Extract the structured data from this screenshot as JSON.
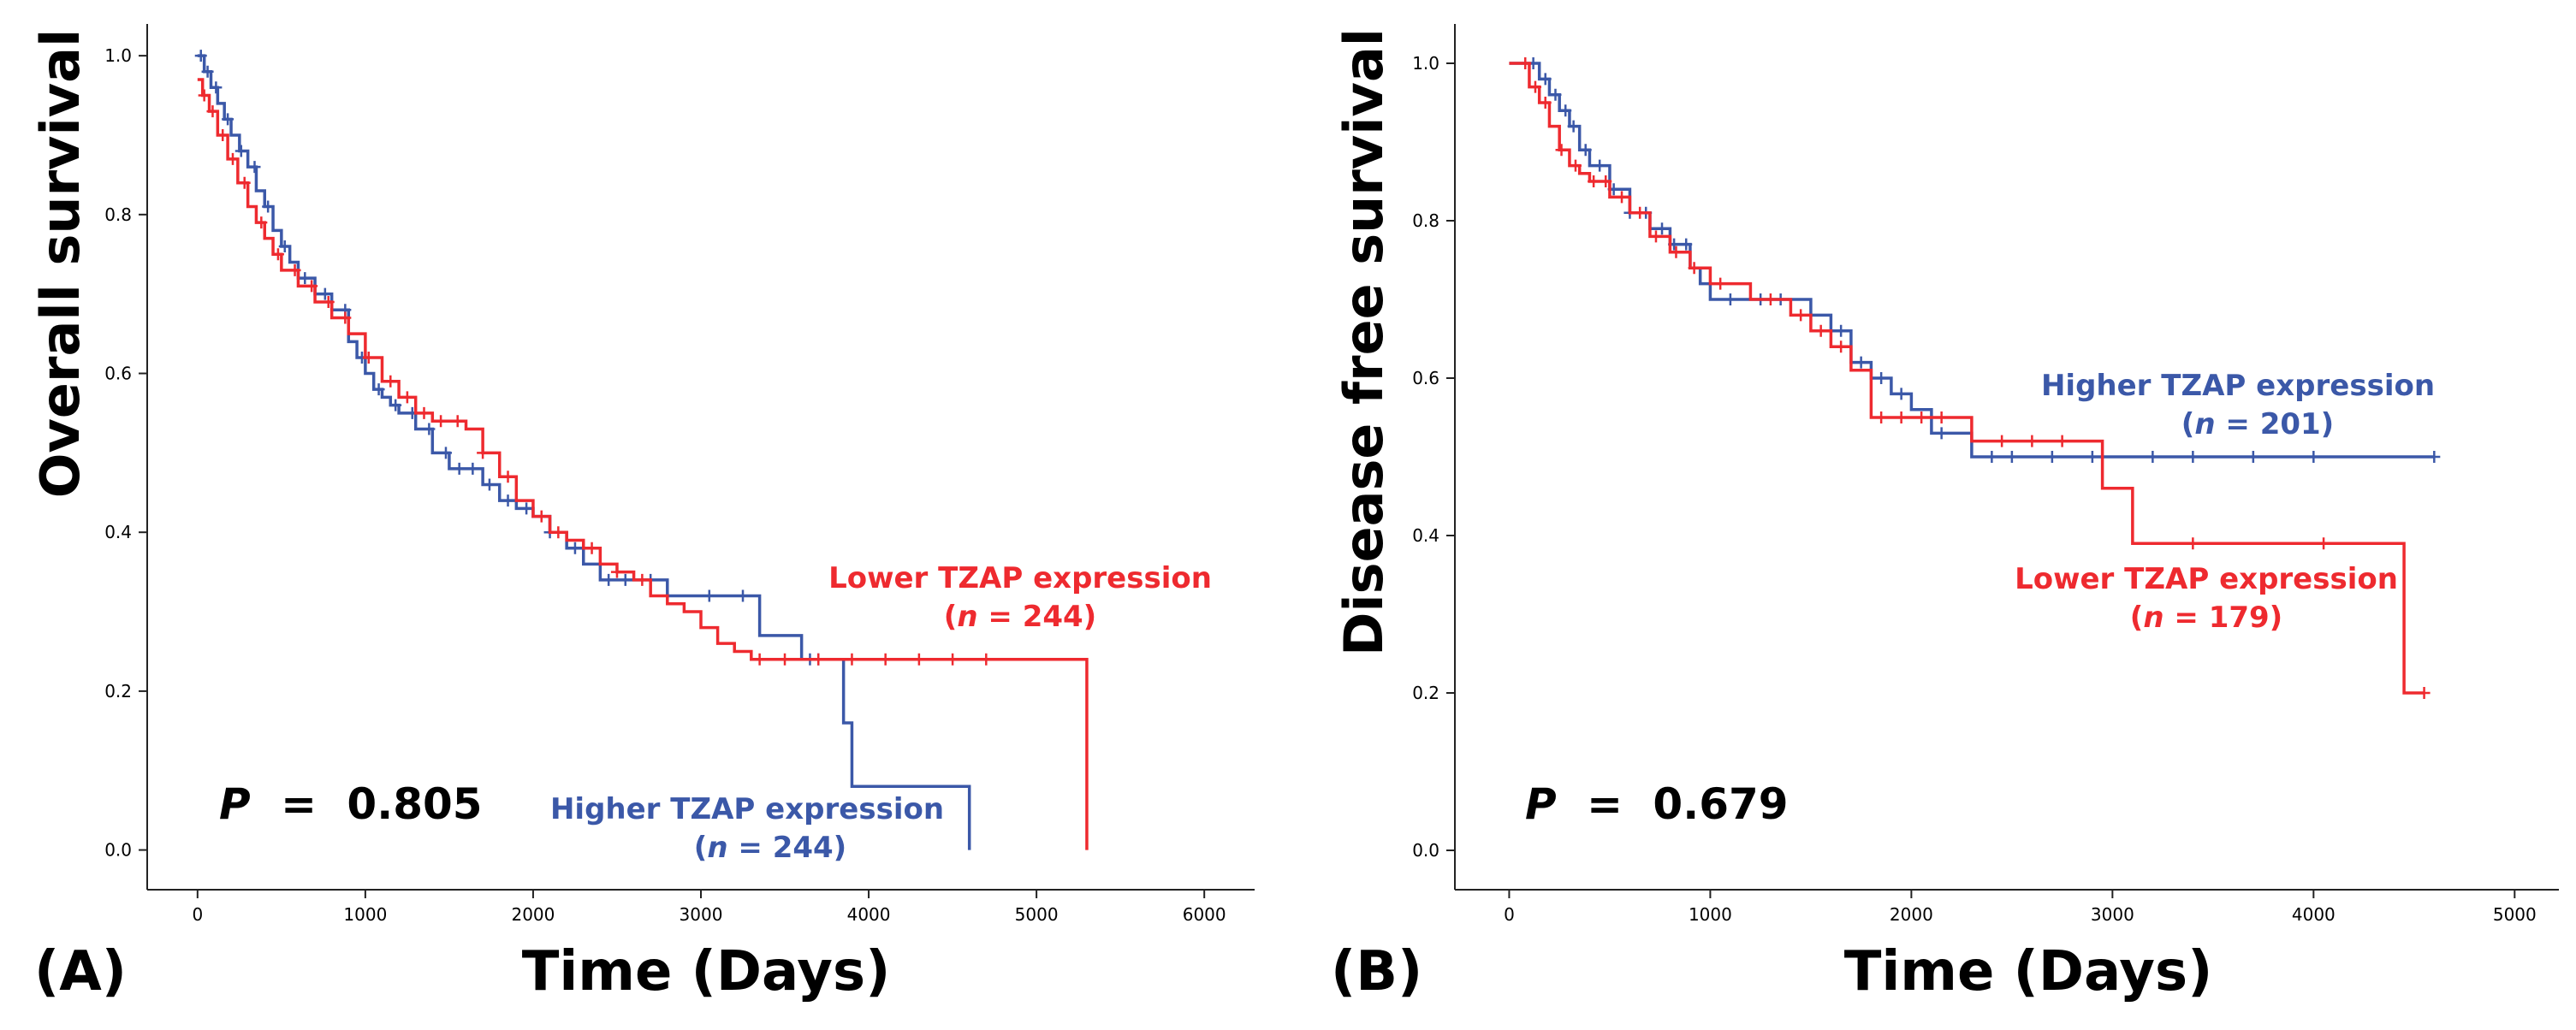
{
  "panels": [
    {
      "panel_label": "(A)",
      "p_value": {
        "label": "P",
        "eq": "=",
        "value": "0.805"
      },
      "legend": {
        "lower": {
          "name": "Lower TZAP expression",
          "n_label": "n",
          "n_text": "= 244)",
          "open_paren": "("
        },
        "higher": {
          "name": "Higher TZAP expression",
          "n_label": "n",
          "n_text": "= 244)",
          "open_paren": "("
        }
      }
    },
    {
      "panel_label": "(B)",
      "p_value": {
        "label": "P",
        "eq": "=",
        "value": "0.679"
      },
      "legend": {
        "lower": {
          "name": "Lower TZAP expression",
          "n_label": "n",
          "n_text": "= 179)",
          "open_paren": "("
        },
        "higher": {
          "name": "Higher TZAP expression",
          "n_label": "n",
          "n_text": "= 201)",
          "open_paren": "("
        }
      }
    }
  ],
  "colors": {
    "lower": "#ee2a2f",
    "higher": "#3b58a8",
    "axis": "#222222"
  },
  "chart_data": [
    {
      "type": "line",
      "step": true,
      "xlabel": "Time (Days)",
      "ylabel": "Overall survival",
      "xlim": [
        -300,
        6300
      ],
      "ylim": [
        -0.05,
        1.04
      ],
      "xticks": [
        0,
        1000,
        2000,
        3000,
        4000,
        5000,
        6000
      ],
      "yticks": [
        0.0,
        0.2,
        0.4,
        0.6,
        0.8,
        1.0
      ],
      "ytick_labels": [
        "0.0",
        "0.2",
        "0.4",
        "0.6",
        "0.8",
        "1.0"
      ],
      "series": [
        {
          "name": "Higher TZAP expression",
          "x": [
            0,
            40,
            80,
            120,
            160,
            200,
            250,
            300,
            350,
            400,
            450,
            500,
            550,
            600,
            700,
            800,
            900,
            950,
            1000,
            1050,
            1100,
            1150,
            1200,
            1300,
            1400,
            1500,
            1600,
            1700,
            1800,
            1900,
            2000,
            2100,
            2200,
            2300,
            2400,
            2600,
            2800,
            3000,
            3200,
            3350,
            3600,
            3800,
            3850,
            3900,
            4000,
            4600
          ],
          "y": [
            1.0,
            0.98,
            0.96,
            0.94,
            0.92,
            0.9,
            0.88,
            0.86,
            0.83,
            0.81,
            0.78,
            0.76,
            0.74,
            0.72,
            0.7,
            0.68,
            0.64,
            0.62,
            0.6,
            0.58,
            0.57,
            0.56,
            0.55,
            0.53,
            0.5,
            0.48,
            0.48,
            0.46,
            0.44,
            0.43,
            0.42,
            0.4,
            0.38,
            0.36,
            0.34,
            0.34,
            0.32,
            0.32,
            0.32,
            0.27,
            0.24,
            0.24,
            0.16,
            0.08,
            0.08,
            0.0
          ],
          "censored_x": [
            20,
            60,
            110,
            180,
            260,
            340,
            420,
            520,
            640,
            760,
            880,
            980,
            1080,
            1180,
            1280,
            1380,
            1480,
            1560,
            1640,
            1740,
            1850,
            1960,
            2100,
            2250,
            2450,
            2550,
            2700,
            3050,
            3250,
            3650,
            3700
          ]
        },
        {
          "name": "Lower TZAP expression",
          "x": [
            0,
            30,
            70,
            120,
            180,
            240,
            300,
            350,
            400,
            450,
            500,
            600,
            700,
            800,
            900,
            1000,
            1100,
            1200,
            1300,
            1400,
            1500,
            1600,
            1700,
            1800,
            1900,
            2000,
            2100,
            2200,
            2300,
            2400,
            2500,
            2600,
            2700,
            2800,
            2900,
            3000,
            3100,
            3200,
            3300,
            5300
          ],
          "y": [
            0.97,
            0.95,
            0.93,
            0.9,
            0.87,
            0.84,
            0.81,
            0.79,
            0.77,
            0.75,
            0.73,
            0.71,
            0.69,
            0.67,
            0.65,
            0.62,
            0.59,
            0.57,
            0.55,
            0.54,
            0.54,
            0.53,
            0.5,
            0.47,
            0.44,
            0.42,
            0.4,
            0.39,
            0.38,
            0.36,
            0.35,
            0.34,
            0.32,
            0.31,
            0.3,
            0.28,
            0.26,
            0.25,
            0.24,
            0.0
          ],
          "censored_x": [
            40,
            90,
            150,
            210,
            280,
            380,
            480,
            580,
            680,
            780,
            880,
            1020,
            1150,
            1250,
            1350,
            1450,
            1550,
            1700,
            1850,
            2050,
            2150,
            2350,
            2500,
            2650,
            3350,
            3500,
            3700,
            3900,
            4100,
            4300,
            4500,
            4700
          ]
        }
      ]
    },
    {
      "type": "line",
      "step": true,
      "xlabel": "Time (Days)",
      "ylabel": "Disease free survival",
      "xlim": [
        -270,
        5220
      ],
      "ylim": [
        -0.05,
        1.05
      ],
      "xticks": [
        0,
        1000,
        2000,
        3000,
        4000,
        5000
      ],
      "yticks": [
        0.0,
        0.2,
        0.4,
        0.6,
        0.8,
        1.0
      ],
      "ytick_labels": [
        "0.0",
        "0.2",
        "0.4",
        "0.6",
        "0.8",
        "1.0"
      ],
      "series": [
        {
          "name": "Higher TZAP expression",
          "x": [
            0,
            150,
            200,
            250,
            300,
            350,
            400,
            500,
            600,
            700,
            800,
            900,
            950,
            1000,
            1200,
            1400,
            1500,
            1600,
            1700,
            1800,
            1900,
            2000,
            2100,
            2300,
            4600
          ],
          "y": [
            1.0,
            0.98,
            0.96,
            0.94,
            0.92,
            0.89,
            0.87,
            0.84,
            0.81,
            0.79,
            0.77,
            0.74,
            0.72,
            0.7,
            0.7,
            0.7,
            0.68,
            0.66,
            0.62,
            0.6,
            0.58,
            0.56,
            0.53,
            0.5,
            0.5
          ],
          "censored_x": [
            120,
            180,
            230,
            280,
            320,
            380,
            450,
            520,
            600,
            680,
            760,
            820,
            880,
            1100,
            1250,
            1350,
            1650,
            1750,
            1850,
            1950,
            2150,
            2400,
            2500,
            2700,
            2900,
            3200,
            3400,
            3700,
            4000,
            4600
          ]
        },
        {
          "name": "Lower TZAP expression",
          "x": [
            0,
            100,
            150,
            200,
            250,
            300,
            350,
            400,
            500,
            600,
            700,
            800,
            900,
            1000,
            1200,
            1400,
            1500,
            1600,
            1700,
            1800,
            2000,
            2300,
            2900,
            2950,
            3050,
            3100,
            4450,
            4550
          ],
          "y": [
            1.0,
            0.97,
            0.95,
            0.92,
            0.89,
            0.87,
            0.86,
            0.85,
            0.83,
            0.81,
            0.78,
            0.76,
            0.74,
            0.72,
            0.7,
            0.68,
            0.66,
            0.64,
            0.61,
            0.55,
            0.55,
            0.52,
            0.52,
            0.46,
            0.46,
            0.39,
            0.2,
            0.2
          ],
          "censored_x": [
            80,
            130,
            180,
            260,
            330,
            420,
            480,
            560,
            650,
            730,
            830,
            920,
            1050,
            1300,
            1450,
            1550,
            1650,
            1850,
            1950,
            2050,
            2150,
            2450,
            2600,
            2750,
            3400,
            4050,
            4550
          ]
        }
      ]
    }
  ]
}
